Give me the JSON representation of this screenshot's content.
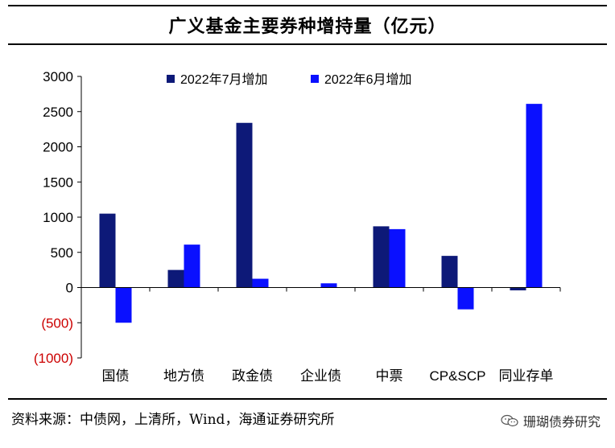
{
  "title": "广义基金主要券种增持量（亿元）",
  "source": "资料来源：中债网，上清所，Wind，海通证券研究所",
  "watermark": "珊瑚债券研究",
  "colors": {
    "series1": "#0d1978",
    "series2": "#0a10ff",
    "negative_tick": "#cc0000",
    "axis": "#000000"
  },
  "chart_data": {
    "type": "bar",
    "title": "广义基金主要券种增持量（亿元）",
    "xlabel": "",
    "ylabel": "",
    "ylim": [
      -1000,
      3000
    ],
    "yticks": [
      3000,
      2500,
      2000,
      1500,
      1000,
      500,
      0,
      -500,
      -1000
    ],
    "ytick_labels": [
      "3000",
      "2500",
      "2000",
      "1500",
      "1000",
      "500",
      "0",
      "(500)",
      "(1000)"
    ],
    "categories": [
      "国债",
      "地方债",
      "政金债",
      "企业债",
      "中票",
      "CP&SCP",
      "同业存单"
    ],
    "series": [
      {
        "name": "2022年7月增加",
        "values": [
          1050,
          250,
          2340,
          0,
          870,
          450,
          -40
        ]
      },
      {
        "name": "2022年6月增加",
        "values": [
          -500,
          610,
          125,
          60,
          830,
          -310,
          2610
        ]
      }
    ],
    "legend_position": "top-center",
    "grid": false
  }
}
